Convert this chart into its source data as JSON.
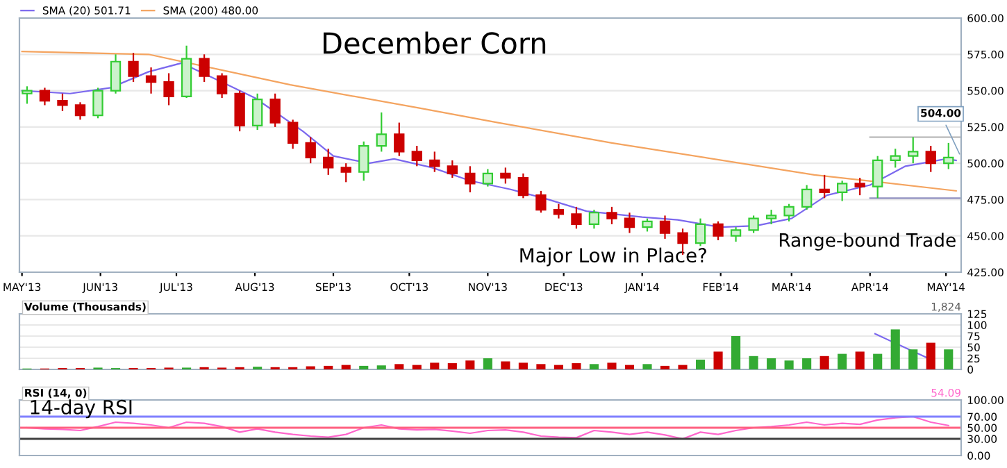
{
  "chart_data": [
    {
      "type": "candlestick",
      "title": "December Corn",
      "x": [
        "2013-05-03",
        "2013-05-10",
        "2013-05-17",
        "2013-05-24",
        "2013-05-31",
        "2013-06-07",
        "2013-06-14",
        "2013-06-21",
        "2013-06-28",
        "2013-07-05",
        "2013-07-12",
        "2013-07-19",
        "2013-07-26",
        "2013-08-02",
        "2013-08-09",
        "2013-08-16",
        "2013-08-23",
        "2013-08-30",
        "2013-09-06",
        "2013-09-13",
        "2013-09-20",
        "2013-09-27",
        "2013-10-04",
        "2013-10-11",
        "2013-10-18",
        "2013-10-25",
        "2013-11-01",
        "2013-11-08",
        "2013-11-15",
        "2013-11-22",
        "2013-11-29",
        "2013-12-06",
        "2013-12-13",
        "2013-12-20",
        "2013-12-27",
        "2014-01-03",
        "2014-01-10",
        "2014-01-17",
        "2014-01-24",
        "2014-01-31",
        "2014-02-07",
        "2014-02-14",
        "2014-02-21",
        "2014-02-28",
        "2014-03-07",
        "2014-03-14",
        "2014-03-21",
        "2014-03-28",
        "2014-04-04",
        "2014-04-11",
        "2014-04-18",
        "2014-04-25",
        "2014-05-02"
      ],
      "ohlc": [
        [
          548,
          553,
          541,
          550
        ],
        [
          550,
          552,
          540,
          543
        ],
        [
          543,
          548,
          536,
          540
        ],
        [
          540,
          542,
          530,
          533
        ],
        [
          533,
          552,
          531,
          550
        ],
        [
          550,
          575,
          548,
          570
        ],
        [
          570,
          576,
          556,
          560
        ],
        [
          560,
          566,
          548,
          556
        ],
        [
          556,
          562,
          540,
          546
        ],
        [
          546,
          581,
          545,
          572
        ],
        [
          572,
          575,
          556,
          560
        ],
        [
          560,
          562,
          545,
          548
        ],
        [
          548,
          550,
          522,
          526
        ],
        [
          526,
          548,
          523,
          544
        ],
        [
          544,
          548,
          525,
          528
        ],
        [
          528,
          530,
          510,
          514
        ],
        [
          514,
          518,
          500,
          504
        ],
        [
          504,
          510,
          492,
          497
        ],
        [
          497,
          500,
          487,
          494
        ],
        [
          494,
          515,
          488,
          512
        ],
        [
          512,
          535,
          508,
          520
        ],
        [
          520,
          528,
          505,
          508
        ],
        [
          508,
          512,
          498,
          502
        ],
        [
          502,
          508,
          494,
          498
        ],
        [
          498,
          502,
          490,
          493
        ],
        [
          493,
          498,
          480,
          486
        ],
        [
          486,
          496,
          484,
          493
        ],
        [
          493,
          497,
          486,
          490
        ],
        [
          490,
          493,
          476,
          478
        ],
        [
          478,
          481,
          466,
          468
        ],
        [
          468,
          472,
          462,
          465
        ],
        [
          465,
          470,
          455,
          458
        ],
        [
          458,
          468,
          455,
          466
        ],
        [
          466,
          470,
          458,
          462
        ],
        [
          462,
          466,
          452,
          456
        ],
        [
          456,
          462,
          453,
          460
        ],
        [
          460,
          464,
          448,
          452
        ],
        [
          452,
          455,
          437,
          445
        ],
        [
          445,
          462,
          443,
          458
        ],
        [
          458,
          460,
          447,
          450
        ],
        [
          450,
          456,
          446,
          454
        ],
        [
          454,
          464,
          452,
          462
        ],
        [
          462,
          468,
          458,
          464
        ],
        [
          464,
          472,
          460,
          470
        ],
        [
          470,
          485,
          468,
          482
        ],
        [
          482,
          492,
          476,
          480
        ],
        [
          480,
          488,
          474,
          486
        ],
        [
          486,
          490,
          478,
          484
        ],
        [
          484,
          505,
          476,
          502
        ],
        [
          502,
          510,
          497,
          505
        ],
        [
          505,
          518,
          500,
          508
        ],
        [
          508,
          512,
          494,
          500
        ],
        [
          500,
          514,
          496,
          504
        ]
      ],
      "colors": [
        "#33cc33",
        "#cc0000",
        "#cc0000",
        "#cc0000",
        "#33cc33",
        "#33cc33",
        "#cc0000",
        "#cc0000",
        "#cc0000",
        "#33cc33",
        "#cc0000",
        "#cc0000",
        "#cc0000",
        "#33cc33",
        "#cc0000",
        "#cc0000",
        "#cc0000",
        "#cc0000",
        "#cc0000",
        "#33cc33",
        "#33cc33",
        "#cc0000",
        "#cc0000",
        "#cc0000",
        "#cc0000",
        "#cc0000",
        "#33cc33",
        "#cc0000",
        "#cc0000",
        "#cc0000",
        "#cc0000",
        "#cc0000",
        "#33cc33",
        "#cc0000",
        "#cc0000",
        "#33cc33",
        "#cc0000",
        "#cc0000",
        "#33cc33",
        "#cc0000",
        "#33cc33",
        "#33cc33",
        "#33cc33",
        "#33cc33",
        "#33cc33",
        "#cc0000",
        "#33cc33",
        "#cc0000",
        "#33cc33",
        "#33cc33",
        "#33cc33",
        "#cc0000",
        "#33cc33"
      ],
      "series": [
        {
          "type": "line",
          "name": "SMA (20) 501.71",
          "color": "#7b68ee",
          "x": [
            "2013-05-01",
            "2013-05-20",
            "2013-06-05",
            "2013-06-20",
            "2013-07-03",
            "2013-07-20",
            "2013-08-01",
            "2013-08-20",
            "2013-09-01",
            "2013-09-15",
            "2013-09-25",
            "2013-10-10",
            "2013-10-25",
            "2013-11-10",
            "2013-11-25",
            "2013-12-10",
            "2014-01-01",
            "2014-01-15",
            "2014-02-01",
            "2014-02-15",
            "2014-03-01",
            "2014-03-15",
            "2014-04-01",
            "2014-04-15",
            "2014-05-01",
            "2014-05-05"
          ],
          "values": [
            550,
            548,
            552,
            563,
            569,
            555,
            545,
            522,
            505,
            500,
            503,
            497,
            488,
            482,
            475,
            467,
            463,
            461,
            456,
            457,
            462,
            478,
            485,
            498,
            503,
            502
          ]
        },
        {
          "type": "line",
          "name": "SMA (200) 480.00",
          "color": "#f4a460",
          "x": [
            "2013-05-01",
            "2013-06-20",
            "2013-08-15",
            "2013-10-05",
            "2013-11-05",
            "2013-12-20",
            "2014-03-10",
            "2014-04-05",
            "2014-05-05"
          ],
          "values": [
            577,
            575,
            554,
            538,
            528,
            514,
            492,
            487,
            481
          ]
        },
        {
          "type": "line",
          "color": "#b0b0b0",
          "x": [
            "2014-04-01",
            "2014-05-07"
          ],
          "values": [
            518,
            518
          ]
        },
        {
          "type": "line",
          "color": "#9090c0",
          "x": [
            "2014-04-01",
            "2014-05-07"
          ],
          "values": [
            476,
            476
          ]
        }
      ],
      "xlim": [
        "2013-04-30",
        "2014-05-07"
      ],
      "xticks": [
        {
          "value": "2013-05-01",
          "label": "MAY'13"
        },
        {
          "value": "2013-06-01",
          "label": "JUN'13"
        },
        {
          "value": "2013-07-01",
          "label": "JUL'13"
        },
        {
          "value": "2013-08-01",
          "label": "AUG'13"
        },
        {
          "value": "2013-09-01",
          "label": "SEP'13"
        },
        {
          "value": "2013-10-01",
          "label": "OCT'13"
        },
        {
          "value": "2013-11-01",
          "label": "NOV'13"
        },
        {
          "value": "2013-12-01",
          "label": "DEC'13"
        },
        {
          "value": "2014-01-01",
          "label": "JAN'14"
        },
        {
          "value": "2014-02-01",
          "label": "FEB'14"
        },
        {
          "value": "2014-03-01",
          "label": "MAR'14"
        },
        {
          "value": "2014-04-01",
          "label": "APR'14"
        },
        {
          "value": "2014-05-01",
          "label": "MAY'14"
        }
      ],
      "ylim": [
        425,
        600
      ],
      "yticks": [
        {
          "value": 425,
          "label": "425.00"
        },
        {
          "value": 450,
          "label": "450.00"
        },
        {
          "value": 475,
          "label": "475.00"
        },
        {
          "value": 500,
          "label": "500.00"
        },
        {
          "value": 525,
          "label": "525.00"
        },
        {
          "value": 550,
          "label": "550.00"
        },
        {
          "value": 575,
          "label": "575.00"
        },
        {
          "value": 600,
          "label": "600.00"
        }
      ],
      "grid": "y",
      "legend": "top left",
      "annotations": [
        "Major Low in Place?",
        "Range-bound Trade",
        {
          "text": "504.00",
          "x": "2014-05-07",
          "y": 504
        }
      ]
    },
    {
      "type": "bar",
      "title": "Volume (Thousands)",
      "x": [
        "2013-05-03",
        "2013-05-10",
        "2013-05-17",
        "2013-05-24",
        "2013-05-31",
        "2013-06-07",
        "2013-06-14",
        "2013-06-21",
        "2013-06-28",
        "2013-07-05",
        "2013-07-12",
        "2013-07-19",
        "2013-07-26",
        "2013-08-02",
        "2013-08-09",
        "2013-08-16",
        "2013-08-23",
        "2013-08-30",
        "2013-09-06",
        "2013-09-13",
        "2013-09-20",
        "2013-09-27",
        "2013-10-04",
        "2013-10-11",
        "2013-10-18",
        "2013-10-25",
        "2013-11-01",
        "2013-11-08",
        "2013-11-15",
        "2013-11-22",
        "2013-11-29",
        "2013-12-06",
        "2013-12-13",
        "2013-12-20",
        "2013-12-27",
        "2014-01-03",
        "2014-01-10",
        "2014-01-17",
        "2014-01-24",
        "2014-01-31",
        "2014-02-07",
        "2014-02-14",
        "2014-02-21",
        "2014-02-28",
        "2014-03-07",
        "2014-03-14",
        "2014-03-21",
        "2014-03-28",
        "2014-04-04",
        "2014-04-11",
        "2014-04-18",
        "2014-04-25",
        "2014-05-02"
      ],
      "values": [
        2,
        2,
        3,
        3,
        4,
        3,
        3,
        3,
        4,
        4,
        5,
        4,
        5,
        6,
        5,
        5,
        7,
        8,
        10,
        8,
        9,
        12,
        10,
        15,
        14,
        20,
        25,
        18,
        15,
        12,
        10,
        14,
        12,
        15,
        10,
        12,
        8,
        10,
        22,
        40,
        75,
        30,
        25,
        20,
        25,
        30,
        35,
        40,
        35,
        90,
        45,
        60,
        45
      ],
      "colors": [
        "#33aa33",
        "#cc0000",
        "#cc0000",
        "#cc0000",
        "#33aa33",
        "#33aa33",
        "#cc0000",
        "#cc0000",
        "#cc0000",
        "#33aa33",
        "#cc0000",
        "#cc0000",
        "#cc0000",
        "#33aa33",
        "#cc0000",
        "#cc0000",
        "#cc0000",
        "#cc0000",
        "#cc0000",
        "#33aa33",
        "#33aa33",
        "#cc0000",
        "#cc0000",
        "#cc0000",
        "#cc0000",
        "#cc0000",
        "#33aa33",
        "#cc0000",
        "#cc0000",
        "#cc0000",
        "#cc0000",
        "#cc0000",
        "#33aa33",
        "#cc0000",
        "#cc0000",
        "#33aa33",
        "#cc0000",
        "#cc0000",
        "#33aa33",
        "#cc0000",
        "#33aa33",
        "#33aa33",
        "#33aa33",
        "#33aa33",
        "#33aa33",
        "#cc0000",
        "#33aa33",
        "#cc0000",
        "#33aa33",
        "#33aa33",
        "#33aa33",
        "#cc0000",
        "#33aa33"
      ],
      "series": [
        {
          "type": "line",
          "color": "#7b68ee",
          "x": [
            "2014-04-03",
            "2014-04-24"
          ],
          "values": [
            80,
            25
          ]
        }
      ],
      "xlim": [
        "2013-04-30",
        "2014-05-07"
      ],
      "tick_labels": "y",
      "ylim": [
        0,
        125
      ],
      "yticks": [
        0,
        25,
        50,
        75,
        100,
        125
      ],
      "grid": "y",
      "annotations": [
        "1,824"
      ]
    },
    {
      "type": "line",
      "title": "RSI (14, 0)",
      "x": [
        "2013-05-03",
        "2013-05-10",
        "2013-05-17",
        "2013-05-24",
        "2013-05-31",
        "2013-06-07",
        "2013-06-14",
        "2013-06-21",
        "2013-06-28",
        "2013-07-05",
        "2013-07-12",
        "2013-07-19",
        "2013-07-26",
        "2013-08-02",
        "2013-08-09",
        "2013-08-16",
        "2013-08-23",
        "2013-08-30",
        "2013-09-06",
        "2013-09-13",
        "2013-09-20",
        "2013-09-27",
        "2013-10-04",
        "2013-10-11",
        "2013-10-18",
        "2013-10-25",
        "2013-11-01",
        "2013-11-08",
        "2013-11-15",
        "2013-11-22",
        "2013-11-29",
        "2013-12-06",
        "2013-12-13",
        "2013-12-20",
        "2013-12-27",
        "2014-01-03",
        "2014-01-10",
        "2014-01-17",
        "2014-01-24",
        "2014-01-31",
        "2014-02-07",
        "2014-02-14",
        "2014-02-21",
        "2014-02-28",
        "2014-03-07",
        "2014-03-14",
        "2014-03-21",
        "2014-03-28",
        "2014-04-04",
        "2014-04-11",
        "2014-04-18",
        "2014-04-25",
        "2014-05-02"
      ],
      "series": [
        {
          "color": "#ff66cc",
          "values": [
            50,
            48,
            47,
            45,
            52,
            60,
            58,
            55,
            50,
            60,
            58,
            52,
            42,
            48,
            42,
            38,
            35,
            33,
            38,
            50,
            55,
            48,
            46,
            47,
            44,
            40,
            45,
            46,
            42,
            35,
            33,
            32,
            45,
            42,
            38,
            42,
            37,
            30,
            42,
            38,
            45,
            50,
            52,
            55,
            60,
            55,
            58,
            56,
            64,
            68,
            70,
            60,
            54
          ]
        }
      ],
      "xlim": [
        "2013-04-30",
        "2014-05-07"
      ],
      "tick_labels": "y",
      "ylim": [
        0,
        100
      ],
      "yticks": [
        {
          "value": 0,
          "label": "0.00"
        },
        {
          "value": 30,
          "label": "30.00"
        },
        {
          "value": 50,
          "label": "50.00"
        },
        {
          "value": 70,
          "label": "70.00"
        },
        {
          "value": 100,
          "label": "100.00"
        }
      ],
      "ref_lines": [
        {
          "axis": "y",
          "value": 70,
          "color": "#8080ff"
        },
        {
          "axis": "y",
          "value": 50,
          "color": "#ff6080"
        },
        {
          "axis": "y",
          "value": 30,
          "color": "#404040"
        }
      ],
      "annotations": [
        "14-day RSI",
        "54.09"
      ]
    }
  ]
}
